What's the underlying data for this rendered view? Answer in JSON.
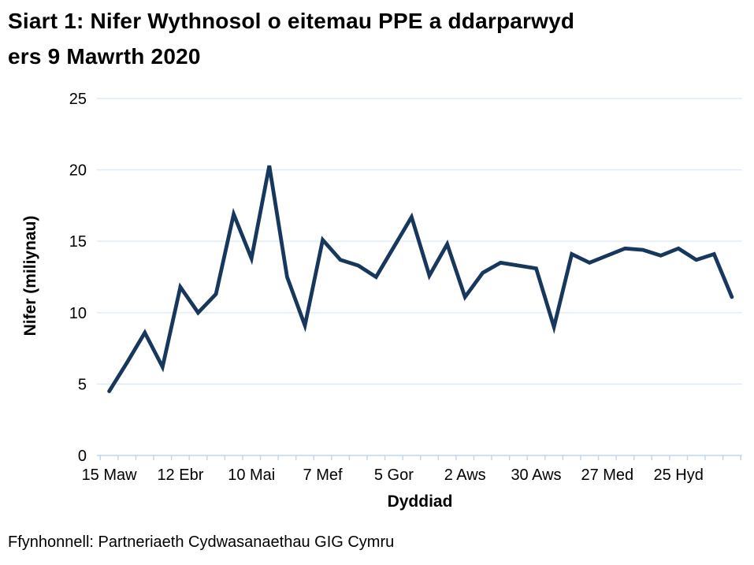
{
  "page": {
    "title_line1": "Siart 1: Nifer Wythnosol o eitemau PPE a ddarparwyd",
    "title_line2": "ers 9 Mawrth 2020",
    "source": "Ffynhonnell: Partneriaeth Cydwasanaethau GIG Cymru"
  },
  "chart_data": {
    "type": "line",
    "title": "Siart 1: Nifer Wythnosol o eitemau PPE a ddarparwyd ers 9 Mawrth 2020",
    "xlabel": "Dyddiad",
    "ylabel": "Nifer (miliynau)",
    "ylim": [
      0,
      25
    ],
    "yticks": [
      0,
      5,
      10,
      15,
      20,
      25
    ],
    "x_tick_labels": [
      "15 Maw",
      "12 Ebr",
      "10 Mai",
      "7 Mef",
      "5 Gor",
      "2 Aws",
      "30 Aws",
      "27 Med",
      "25 Hyd"
    ],
    "weeks_per_labelled_tick": 4,
    "values": [
      4.5,
      6.5,
      8.6,
      6.2,
      11.8,
      10.0,
      11.3,
      16.9,
      13.8,
      20.3,
      12.5,
      9.1,
      15.1,
      13.7,
      13.3,
      12.5,
      14.6,
      16.7,
      12.6,
      14.8,
      11.1,
      12.8,
      13.5,
      13.3,
      13.1,
      9.0,
      14.1,
      13.5,
      14.0,
      14.5,
      14.4,
      14.0,
      14.5,
      13.7,
      14.1,
      11.1
    ],
    "grid": true,
    "legend": false,
    "colors": {
      "line": "#17375D",
      "gridline": "#DEEBF7",
      "axis": "#BDD7EE",
      "text": "#000000"
    }
  }
}
